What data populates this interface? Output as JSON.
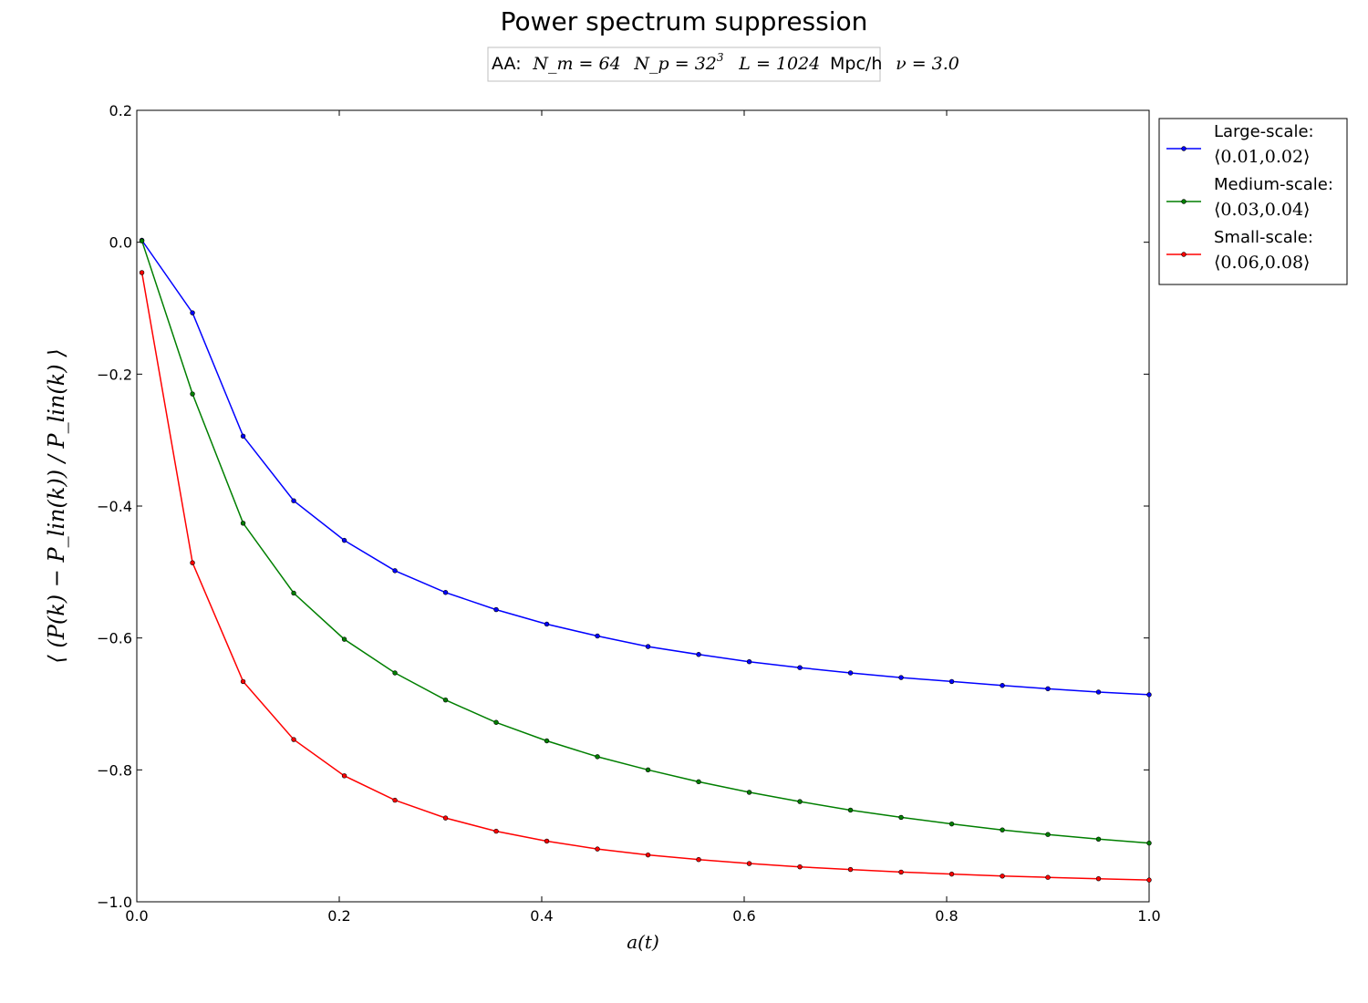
{
  "chart_data": {
    "type": "line",
    "title": "Power spectrum suppression",
    "annotation": {
      "prefix": "AA:",
      "nm": "N_m = 64",
      "np_base": "N_p = 32",
      "np_exp": "3",
      "L": "L = 1024",
      "L_unit": "Mpc/h",
      "nu": "ν = 3.0"
    },
    "xlabel": "a(t)",
    "ylabel": "⟨ (P(k) − P_lin(k)) / P_lin(k) ⟩",
    "xlim": [
      0.0,
      1.0
    ],
    "ylim": [
      -1.0,
      0.2
    ],
    "xticks": [
      "0.0",
      "0.2",
      "0.4",
      "0.6",
      "0.8",
      "1.0"
    ],
    "yticks": [
      "−1.0",
      "−0.8",
      "−0.6",
      "−0.4",
      "−0.2",
      "0.0",
      "0.2"
    ],
    "grid": false,
    "legend_position": "outside-top-right",
    "x": [
      0.005,
      0.055,
      0.105,
      0.155,
      0.205,
      0.255,
      0.305,
      0.355,
      0.405,
      0.455,
      0.505,
      0.555,
      0.605,
      0.655,
      0.705,
      0.755,
      0.805,
      0.855,
      0.9,
      0.95,
      1.0
    ],
    "series": [
      {
        "name": "Large-scale:",
        "range_label": "⟨0.01,0.02⟩",
        "color": "#0000ff",
        "values": [
          0.003,
          -0.107,
          -0.294,
          -0.392,
          -0.452,
          -0.498,
          -0.531,
          -0.557,
          -0.579,
          -0.597,
          -0.613,
          -0.625,
          -0.636,
          -0.645,
          -0.653,
          -0.66,
          -0.666,
          -0.672,
          -0.677,
          -0.682,
          -0.686
        ]
      },
      {
        "name": "Medium-scale:",
        "range_label": "⟨0.03,0.04⟩",
        "color": "#007f00",
        "values": [
          0.002,
          -0.23,
          -0.426,
          -0.532,
          -0.602,
          -0.653,
          -0.694,
          -0.728,
          -0.756,
          -0.78,
          -0.8,
          -0.818,
          -0.834,
          -0.848,
          -0.861,
          -0.872,
          -0.882,
          -0.891,
          -0.898,
          -0.905,
          -0.911
        ]
      },
      {
        "name": "Small-scale:",
        "range_label": "⟨0.06,0.08⟩",
        "color": "#ff0000",
        "values": [
          -0.046,
          -0.486,
          -0.666,
          -0.754,
          -0.809,
          -0.846,
          -0.873,
          -0.893,
          -0.908,
          -0.92,
          -0.929,
          -0.936,
          -0.942,
          -0.947,
          -0.951,
          -0.955,
          -0.958,
          -0.961,
          -0.963,
          -0.965,
          -0.967
        ]
      }
    ]
  }
}
